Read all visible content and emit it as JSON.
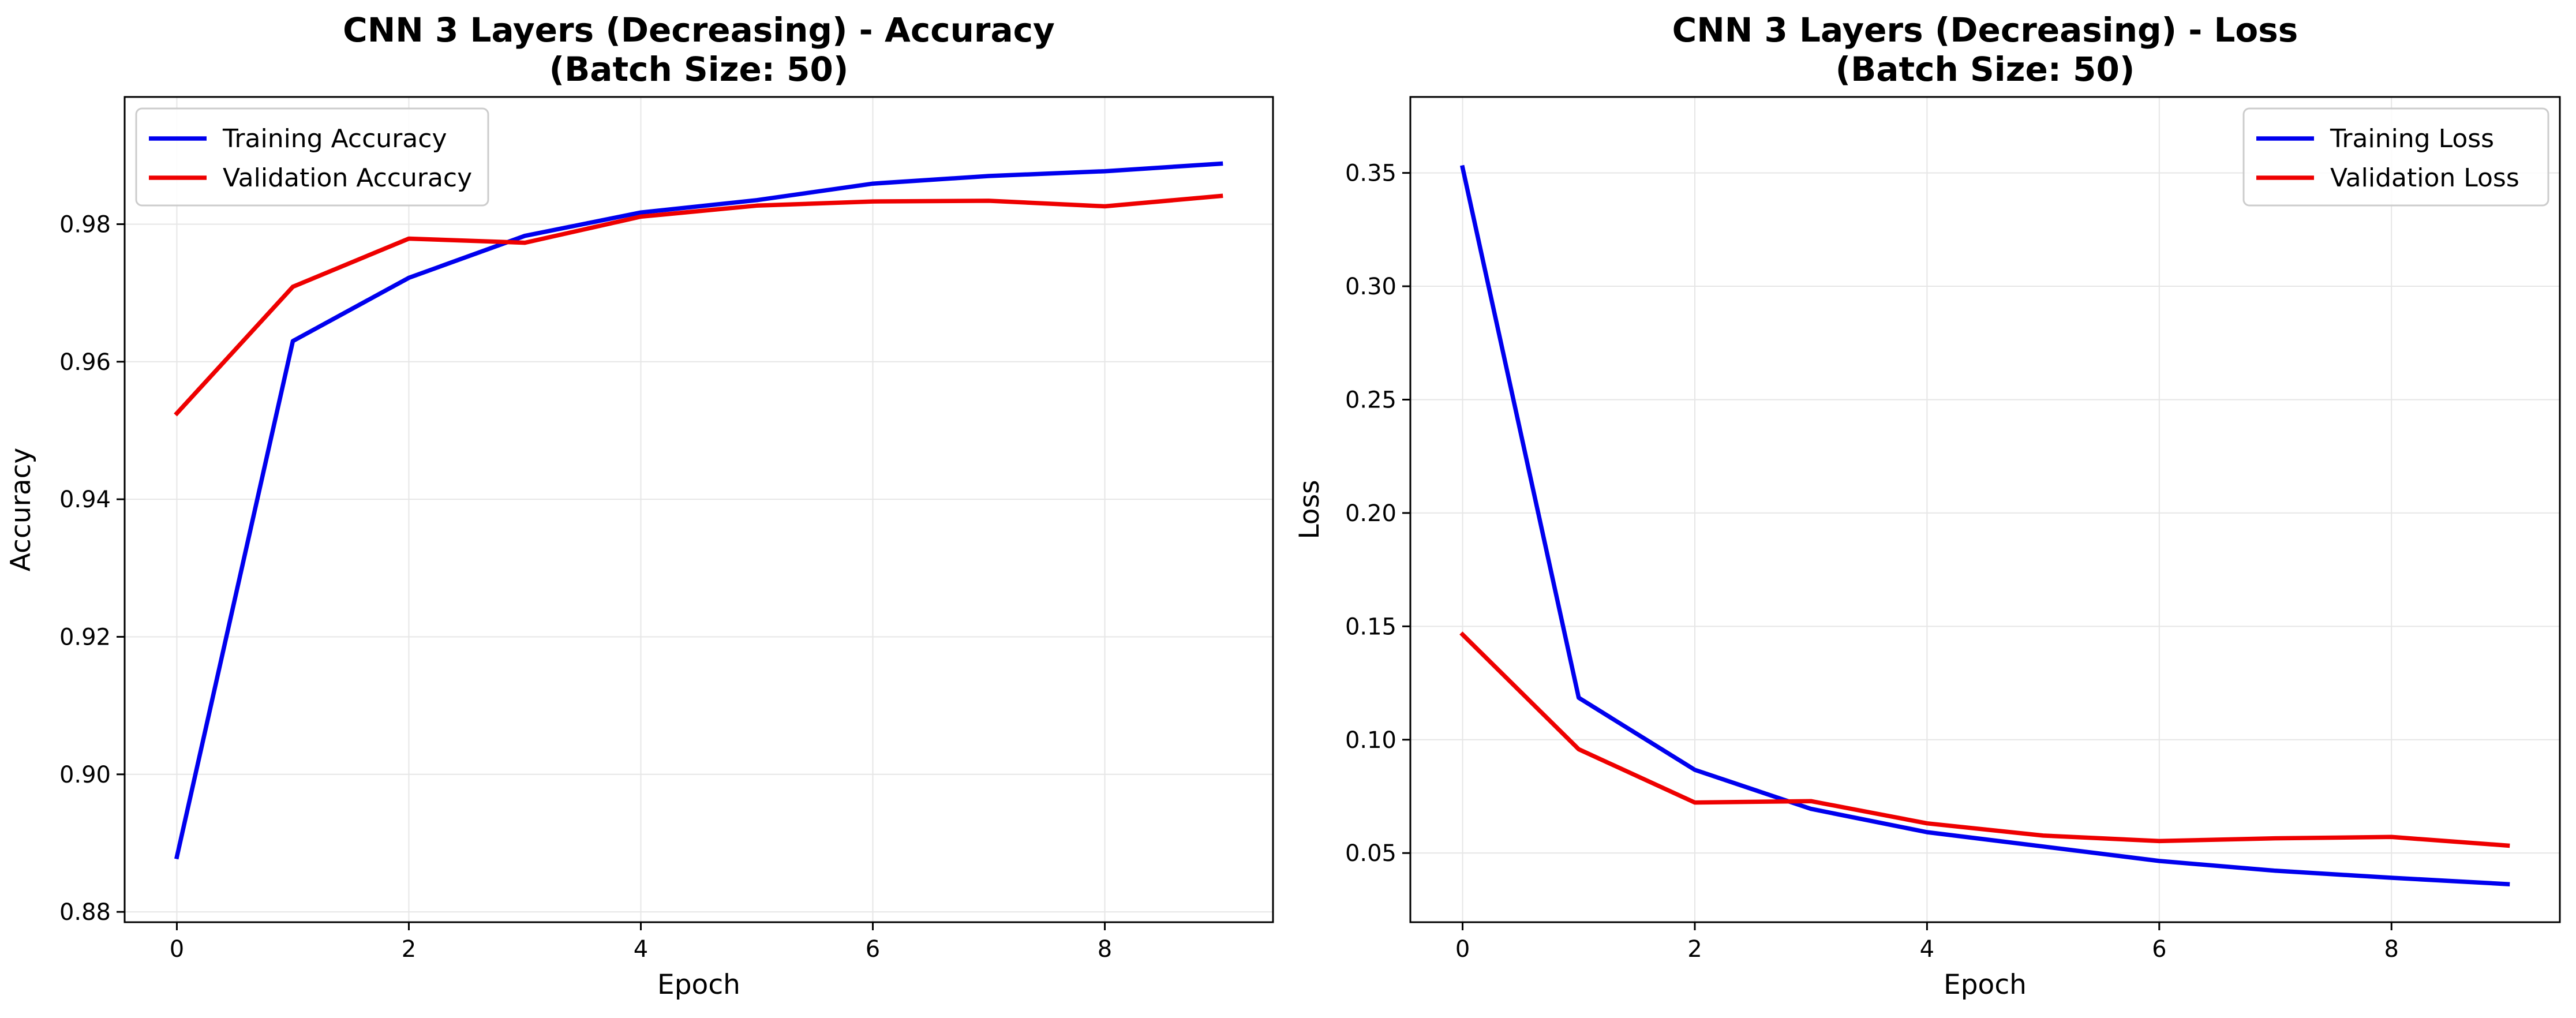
{
  "chart_data": [
    {
      "type": "line",
      "title_lines": [
        "CNN 3 Layers (Decreasing) - Accuracy",
        "(Batch Size: 50)"
      ],
      "xlabel": "Epoch",
      "ylabel": "Accuracy",
      "x": [
        0,
        1,
        2,
        3,
        4,
        5,
        6,
        7,
        8,
        9
      ],
      "xlim": [
        -0.45,
        9.45
      ],
      "ylim": [
        0.8785,
        0.9985
      ],
      "xticks": [
        0,
        2,
        4,
        6,
        8
      ],
      "xtick_labels": [
        "0",
        "2",
        "4",
        "6",
        "8"
      ],
      "yticks": [
        0.88,
        0.9,
        0.92,
        0.94,
        0.96,
        0.98
      ],
      "ytick_labels": [
        "0.88",
        "0.90",
        "0.92",
        "0.94",
        "0.96",
        "0.98"
      ],
      "grid": true,
      "legend_position": "upper-left",
      "series": [
        {
          "name": "Training Accuracy",
          "color": "#0000ee",
          "values": [
            0.888,
            0.963,
            0.9722,
            0.9783,
            0.9817,
            0.9835,
            0.9859,
            0.987,
            0.9877,
            0.9888
          ]
        },
        {
          "name": "Validation Accuracy",
          "color": "#ee0000",
          "values": [
            0.9525,
            0.9709,
            0.9779,
            0.9773,
            0.9811,
            0.9827,
            0.9833,
            0.9834,
            0.9826,
            0.9841
          ]
        }
      ]
    },
    {
      "type": "line",
      "title_lines": [
        "CNN 3 Layers (Decreasing) - Loss",
        "(Batch Size: 50)"
      ],
      "xlabel": "Epoch",
      "ylabel": "Loss",
      "x": [
        0,
        1,
        2,
        3,
        4,
        5,
        6,
        7,
        8,
        9
      ],
      "xlim": [
        -0.45,
        9.45
      ],
      "ylim": [
        0.0195,
        0.3835
      ],
      "xticks": [
        0,
        2,
        4,
        6,
        8
      ],
      "xtick_labels": [
        "0",
        "2",
        "4",
        "6",
        "8"
      ],
      "yticks": [
        0.05,
        0.1,
        0.15,
        0.2,
        0.25,
        0.3,
        0.35
      ],
      "ytick_labels": [
        "0.05",
        "0.10",
        "0.15",
        "0.20",
        "0.25",
        "0.30",
        "0.35"
      ],
      "grid": true,
      "legend_position": "upper-right",
      "series": [
        {
          "name": "Training Loss",
          "color": "#0000ee",
          "values": [
            0.3524,
            0.1185,
            0.0867,
            0.0695,
            0.0592,
            0.0529,
            0.0465,
            0.0422,
            0.0391,
            0.0363
          ]
        },
        {
          "name": "Validation Loss",
          "color": "#ee0000",
          "values": [
            0.1464,
            0.0958,
            0.0723,
            0.0729,
            0.0631,
            0.0577,
            0.0553,
            0.0565,
            0.0571,
            0.0533
          ]
        }
      ]
    }
  ]
}
